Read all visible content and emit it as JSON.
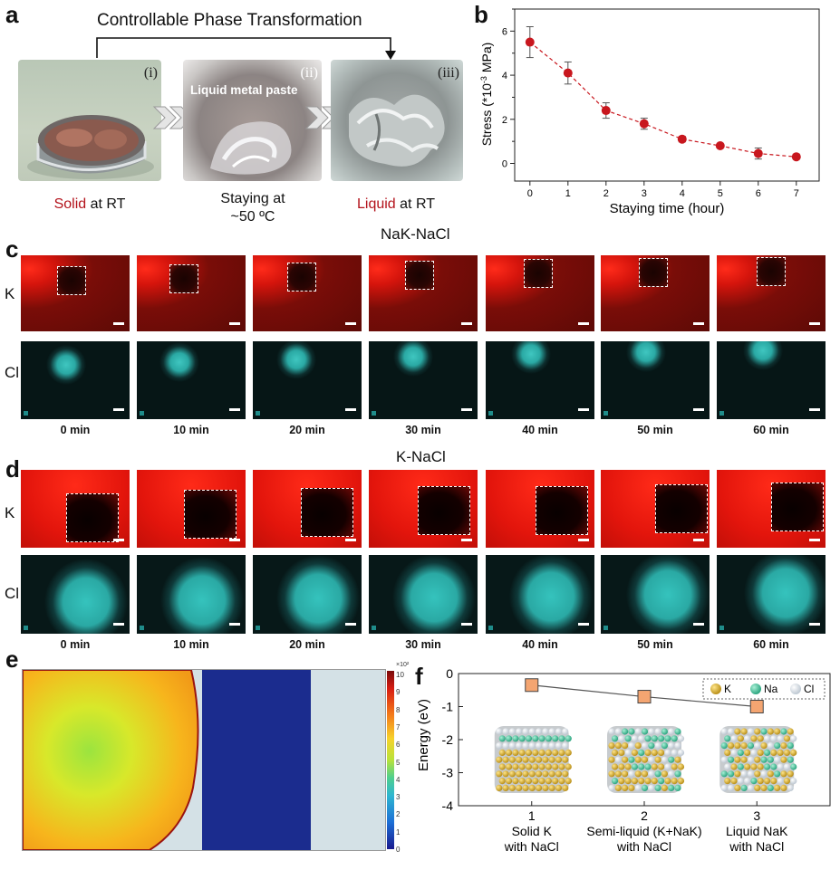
{
  "panel_labels": {
    "a": "a",
    "b": "b",
    "c": "c",
    "d": "d",
    "e": "e",
    "f": "f"
  },
  "panel_a": {
    "title": "Controllable Phase Transformation",
    "photo_labels": [
      "(i)",
      "(ii)",
      "(iii)"
    ],
    "paste_label": "Liquid metal paste",
    "captions": [
      {
        "colored": "Solid",
        "rest": " at RT"
      },
      {
        "line1": "Staying at",
        "line2": "~50 ºC"
      },
      {
        "colored": "Liquid",
        "rest": " at RT"
      }
    ]
  },
  "panel_c": {
    "title": "NaK-NaCl",
    "rows": [
      "K",
      "Cl"
    ],
    "times": [
      "0 min",
      "10 min",
      "20 min",
      "30 min",
      "40 min",
      "50 min",
      "60 min"
    ]
  },
  "panel_d": {
    "title": "K-NaCl",
    "rows": [
      "K",
      "Cl"
    ],
    "times": [
      "0 min",
      "10 min",
      "20 min",
      "30 min",
      "40 min",
      "50 min",
      "60 min"
    ]
  },
  "panel_e": {
    "colorbar_ticks": [
      "0",
      "1",
      "2",
      "3",
      "4",
      "5",
      "6",
      "7",
      "8",
      "9",
      "10"
    ],
    "colorbar_multiplier": "×10²"
  },
  "colors": {
    "accent_red": "#b3121b",
    "marker_red": "#c8171e",
    "k_map": "#d9150d",
    "cl_map": "#2bb2ad",
    "square_orange": "#f4a571"
  },
  "chart_data": [
    {
      "type": "scatter",
      "title": "",
      "xlabel": "Staying time (hour)",
      "ylabel": "Stress (*10⁻³ MPa)",
      "ylabel_parts": {
        "pre": "Stress (*10",
        "sup": "-3",
        "post": " MPa)"
      },
      "x": [
        0,
        1,
        2,
        3,
        4,
        5,
        6,
        7
      ],
      "y": [
        5.5,
        4.1,
        2.4,
        1.8,
        1.1,
        0.8,
        0.45,
        0.3
      ],
      "yerr": [
        0.7,
        0.5,
        0.35,
        0.25,
        0.12,
        0.08,
        0.25,
        0.1
      ],
      "xlim": [
        -0.4,
        7.6
      ],
      "ylim": [
        -0.8,
        7
      ],
      "xticks": [
        "0",
        "1",
        "2",
        "3",
        "4",
        "5",
        "6",
        "7"
      ],
      "yticks": [
        "0",
        "2",
        "4",
        "6"
      ]
    },
    {
      "type": "line",
      "title": "",
      "xlabel": "",
      "ylabel": "Energy (eV)",
      "x": [
        1,
        2,
        3
      ],
      "y": [
        -0.35,
        -0.7,
        -1.0
      ],
      "ylim": [
        -4,
        0
      ],
      "yticks": [
        "0",
        "-1",
        "-2",
        "-3",
        "-4"
      ],
      "xticks": [
        "1",
        "2",
        "3"
      ],
      "categories": [
        {
          "line1": "Solid K",
          "line2": "with NaCl"
        },
        {
          "line1": "Semi-liquid (K+NaK)",
          "line2": "with NaCl"
        },
        {
          "line1": "Liquid NaK",
          "line2": "with NaCl"
        }
      ],
      "legend": [
        "K",
        "Na",
        "Cl"
      ],
      "legend_position": "top-right"
    }
  ]
}
